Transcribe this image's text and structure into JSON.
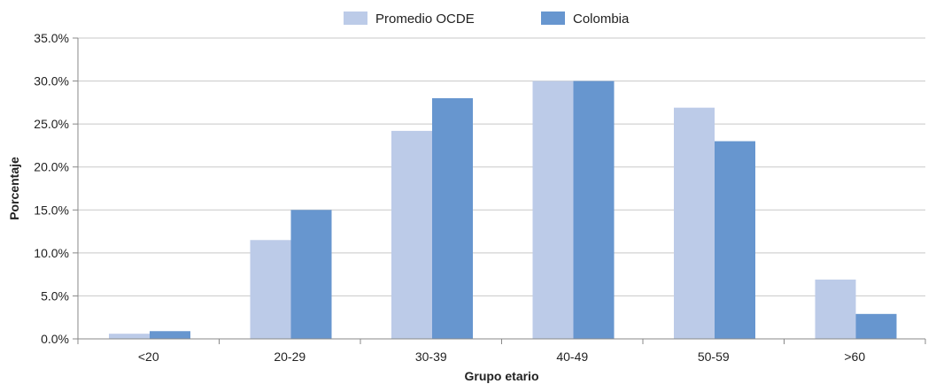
{
  "chart_data": {
    "type": "bar",
    "title": "",
    "xlabel": "Grupo etario",
    "ylabel": "Porcentaje",
    "categories": [
      "<20",
      "20-29",
      "30-39",
      "40-49",
      "50-59",
      ">60"
    ],
    "series": [
      {
        "name": "Promedio OCDE",
        "color": "#bccbe8",
        "values": [
          0.6,
          11.5,
          24.2,
          30.0,
          26.9,
          6.9
        ]
      },
      {
        "name": "Colombia",
        "color": "#6796cf",
        "values": [
          0.9,
          15.0,
          28.0,
          30.0,
          23.0,
          2.9
        ]
      }
    ],
    "ylim": [
      0,
      35
    ],
    "yticks": [
      0,
      5,
      10,
      15,
      20,
      25,
      30,
      35
    ],
    "ytick_labels": [
      "0.0%",
      "5.0%",
      "10.0%",
      "15.0%",
      "20.0%",
      "25.0%",
      "30.0%",
      "35.0%"
    ],
    "grid": true,
    "grid_color": "#c8c8c8",
    "legend_position": "top-center"
  }
}
